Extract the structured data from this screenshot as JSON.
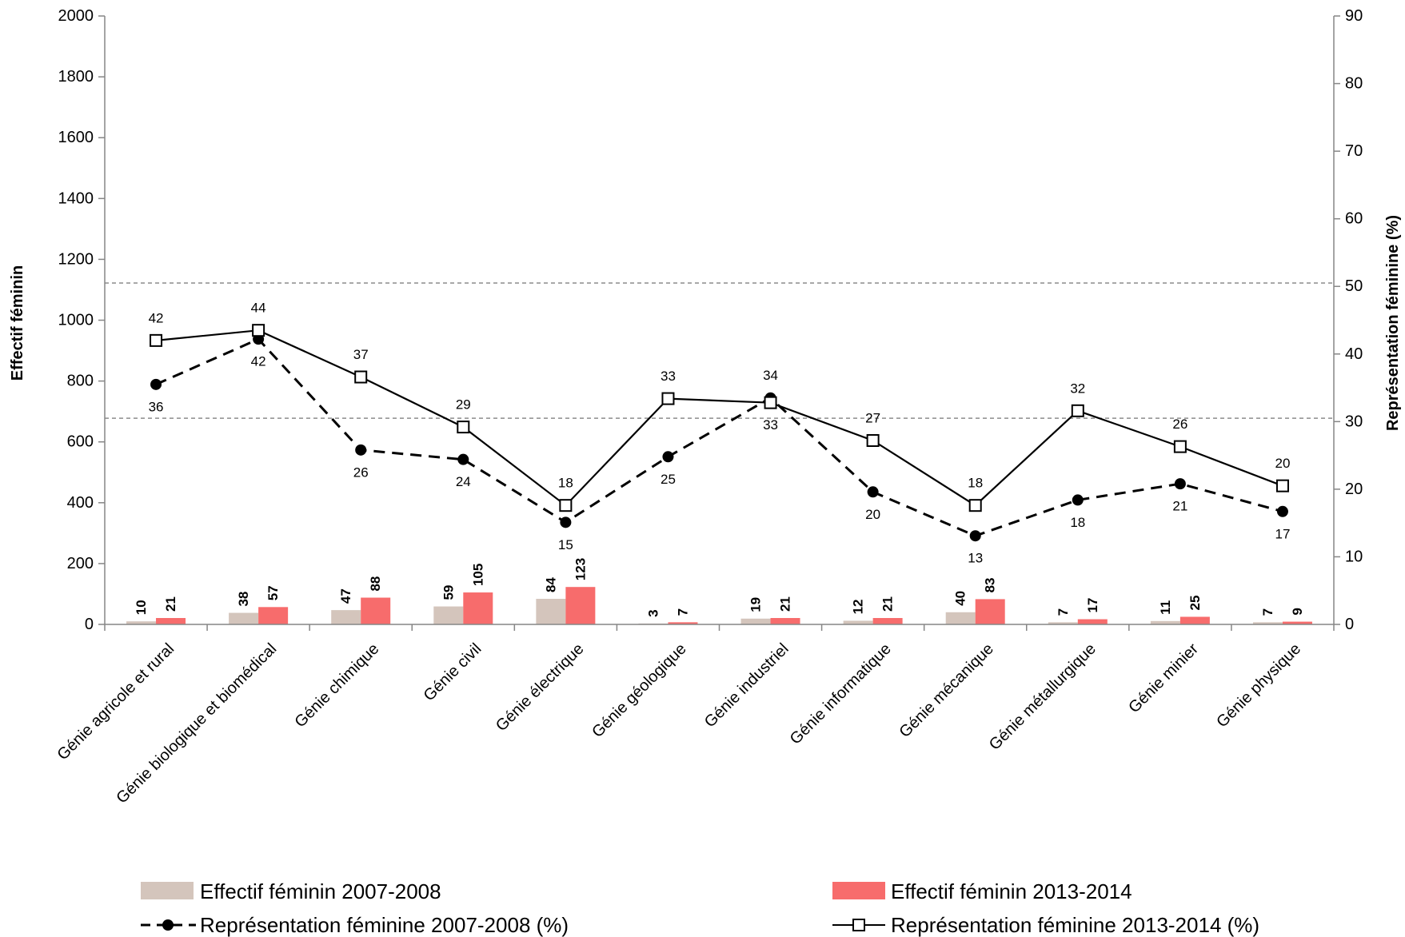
{
  "chart_data": {
    "type": "bar",
    "categories": [
      "Génie agricole et rural",
      "Génie biologique et biomédical",
      "Génie chimique",
      "Génie civil",
      "Génie électrique",
      "Génie géologique",
      "Génie industriel",
      "Génie informatique",
      "Génie mécanique",
      "Génie métallurgique",
      "Génie minier",
      "Génie physique"
    ],
    "y_left": {
      "label": "Effectif féminin",
      "range": [
        0,
        2000
      ],
      "ticks": [
        "0",
        "200",
        "400",
        "600",
        "800",
        "1000",
        "1200",
        "1400",
        "1600",
        "1800",
        "2000"
      ]
    },
    "y_right": {
      "label": "Représentation féminine (%)",
      "range": [
        0,
        90
      ],
      "ticks": [
        "0",
        "10",
        "20",
        "30",
        "40",
        "50",
        "60",
        "70",
        "80",
        "90"
      ]
    },
    "reference_lines_right": [
      30.5,
      50.5
    ],
    "series": [
      {
        "name": "Effectif féminin 2007-2008",
        "type": "bar",
        "axis": "left",
        "color": "#d4c5bc",
        "values": [
          10,
          38,
          47,
          59,
          84,
          3,
          19,
          12,
          40,
          7,
          11,
          7
        ]
      },
      {
        "name": "Effectif féminin 2013-2014",
        "type": "bar",
        "axis": "left",
        "color": "#f76c6c",
        "values": [
          21,
          57,
          88,
          105,
          123,
          7,
          21,
          21,
          83,
          17,
          25,
          9
        ]
      },
      {
        "name": "Représentation féminine 2007-2008 (%)",
        "type": "line",
        "axis": "right",
        "style": "dashed",
        "marker": "filled-circle",
        "color": "#000000",
        "values": [
          35.5,
          42.2,
          25.8,
          24.4,
          15.1,
          24.8,
          33.5,
          19.6,
          13.1,
          18.4,
          20.8,
          16.7
        ],
        "labels": [
          "36",
          "42",
          "26",
          "24",
          "15",
          "25",
          "34",
          "20",
          "13",
          "18",
          "21",
          "17"
        ],
        "label_pos": [
          "below",
          "below",
          "below",
          "below",
          "below",
          "below",
          "above",
          "below",
          "below",
          "below",
          "below",
          "below"
        ]
      },
      {
        "name": "Représentation féminine 2013-2014 (%)",
        "type": "line",
        "axis": "right",
        "style": "solid",
        "marker": "open-square",
        "color": "#000000",
        "values": [
          42.0,
          43.5,
          36.6,
          29.2,
          17.6,
          33.4,
          32.8,
          27.2,
          17.6,
          31.6,
          26.3,
          20.5
        ],
        "labels": [
          "42",
          "44",
          "37",
          "29",
          "18",
          "33",
          "33",
          "27",
          "18",
          "32",
          "26",
          "20"
        ],
        "label_pos": [
          "above",
          "above",
          "above",
          "above",
          "above",
          "above",
          "below",
          "above",
          "above",
          "above",
          "above",
          "above"
        ]
      }
    ],
    "legend": {
      "placement": "bottom",
      "items": [
        "Effectif féminin 2007-2008",
        "Effectif féminin 2013-2014",
        "Représentation féminine 2007-2008 (%)",
        "Représentation féminine 2013-2014 (%)"
      ]
    }
  }
}
